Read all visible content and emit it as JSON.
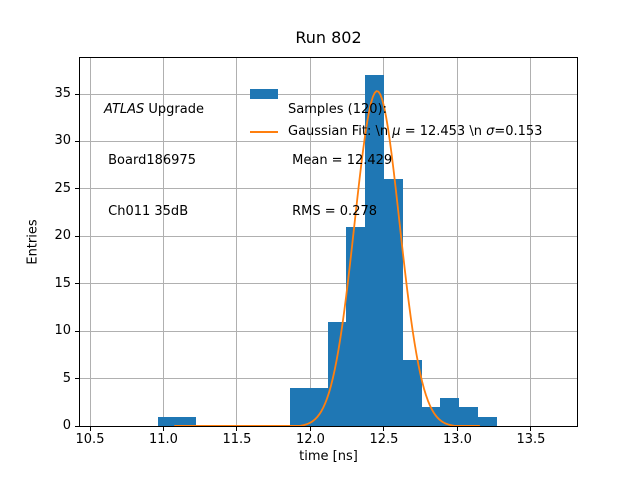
{
  "title": "Run 802",
  "axes": {
    "xlabel": "time [ns]",
    "ylabel": "Entries",
    "xlim": [
      10.432,
      13.813
    ],
    "ylim": [
      0,
      38.85
    ],
    "xticks": [
      {
        "v": 10.5,
        "label": "10.5"
      },
      {
        "v": 11.0,
        "label": "11.0"
      },
      {
        "v": 11.5,
        "label": "11.5"
      },
      {
        "v": 12.0,
        "label": "12.0"
      },
      {
        "v": 12.5,
        "label": "12.5"
      },
      {
        "v": 13.0,
        "label": "13.0"
      },
      {
        "v": 13.5,
        "label": "13.5"
      }
    ],
    "yticks": [
      {
        "v": 0,
        "label": "0"
      },
      {
        "v": 5,
        "label": "5"
      },
      {
        "v": 10,
        "label": "10"
      },
      {
        "v": 15,
        "label": "15"
      },
      {
        "v": 20,
        "label": "20"
      },
      {
        "v": 25,
        "label": "25"
      },
      {
        "v": 30,
        "label": "30"
      },
      {
        "v": 35,
        "label": "35"
      }
    ],
    "grid_color": "#b0b0b0"
  },
  "annotation": {
    "atlas": "ATLAS",
    "rest_line1": " Upgrade",
    "line2": " Board186975",
    "line3": " Ch011 35dB"
  },
  "legend": {
    "samples": {
      "line1": "Samples (120):",
      "line2": " Mean = 12.429",
      "line3": " RMS = 0.278",
      "swatch_color": "#1f77b4"
    },
    "gauss": {
      "pre": "Gaussian Fit: \\n ",
      "mu": "μ",
      "mid": " = 12.453 \\n ",
      "sigma": "σ",
      "post": "=0.153",
      "line_color": "#ff7f0e"
    }
  },
  "chart_data": {
    "type": "bar",
    "subtype": "histogram-with-gaussian-fit",
    "title": "Run 802",
    "xlabel": "time [ns]",
    "ylabel": "Entries",
    "xlim": [
      10.432,
      13.813
    ],
    "ylim": [
      0,
      38.85
    ],
    "grid": true,
    "bin_edges": [
      10.9655,
      11.0934,
      11.2213,
      11.3491,
      11.477,
      11.6049,
      11.7328,
      11.8606,
      11.9885,
      12.1164,
      12.2443,
      12.3721,
      12.5,
      12.6279,
      12.7558,
      12.8836,
      13.0115,
      13.1394,
      13.2673
    ],
    "counts": [
      1,
      1,
      0,
      0,
      0,
      0,
      0,
      4,
      4,
      11,
      21,
      37,
      26,
      7,
      2,
      3,
      2,
      1
    ],
    "n_samples": 120,
    "mean": 12.429,
    "rms": 0.278,
    "bar_color": "#1f77b4",
    "fit": {
      "type": "gaussian",
      "mu": 12.453,
      "sigma": 0.153,
      "amplitude": 35.4,
      "x_start": 11.078,
      "x_end": 13.148,
      "color": "#ff7f0e",
      "linewidth": 1.8
    }
  }
}
